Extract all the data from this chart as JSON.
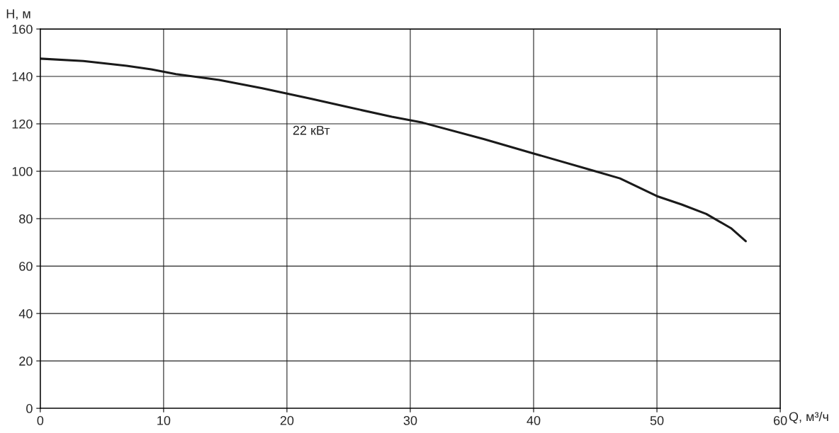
{
  "chart_data": {
    "type": "line",
    "xlabel": "Q, м³/ч",
    "ylabel": "H, м",
    "x": [
      0,
      3.5,
      7,
      9,
      11,
      14.5,
      18,
      22,
      25,
      28.5,
      31,
      36,
      40,
      45,
      47,
      50,
      52,
      54,
      56,
      57.2
    ],
    "series": [
      {
        "color": "#1a1a1a",
        "values": [
          147.5,
          146.5,
          144.5,
          143,
          141,
          138.5,
          135,
          130.5,
          127,
          123,
          120.5,
          113.5,
          107.5,
          100,
          97,
          89.5,
          86,
          82,
          76,
          70.5
        ]
      }
    ],
    "annotations": [
      "22 кВт"
    ],
    "xlim": [
      0,
      60
    ],
    "ylim": [
      0,
      160
    ],
    "xticks": [
      0,
      10,
      20,
      30,
      40,
      50,
      60
    ],
    "yticks": [
      0,
      20,
      40,
      60,
      80,
      100,
      120,
      140,
      160
    ],
    "grid": true,
    "marker": "none",
    "line_style": "solid"
  }
}
